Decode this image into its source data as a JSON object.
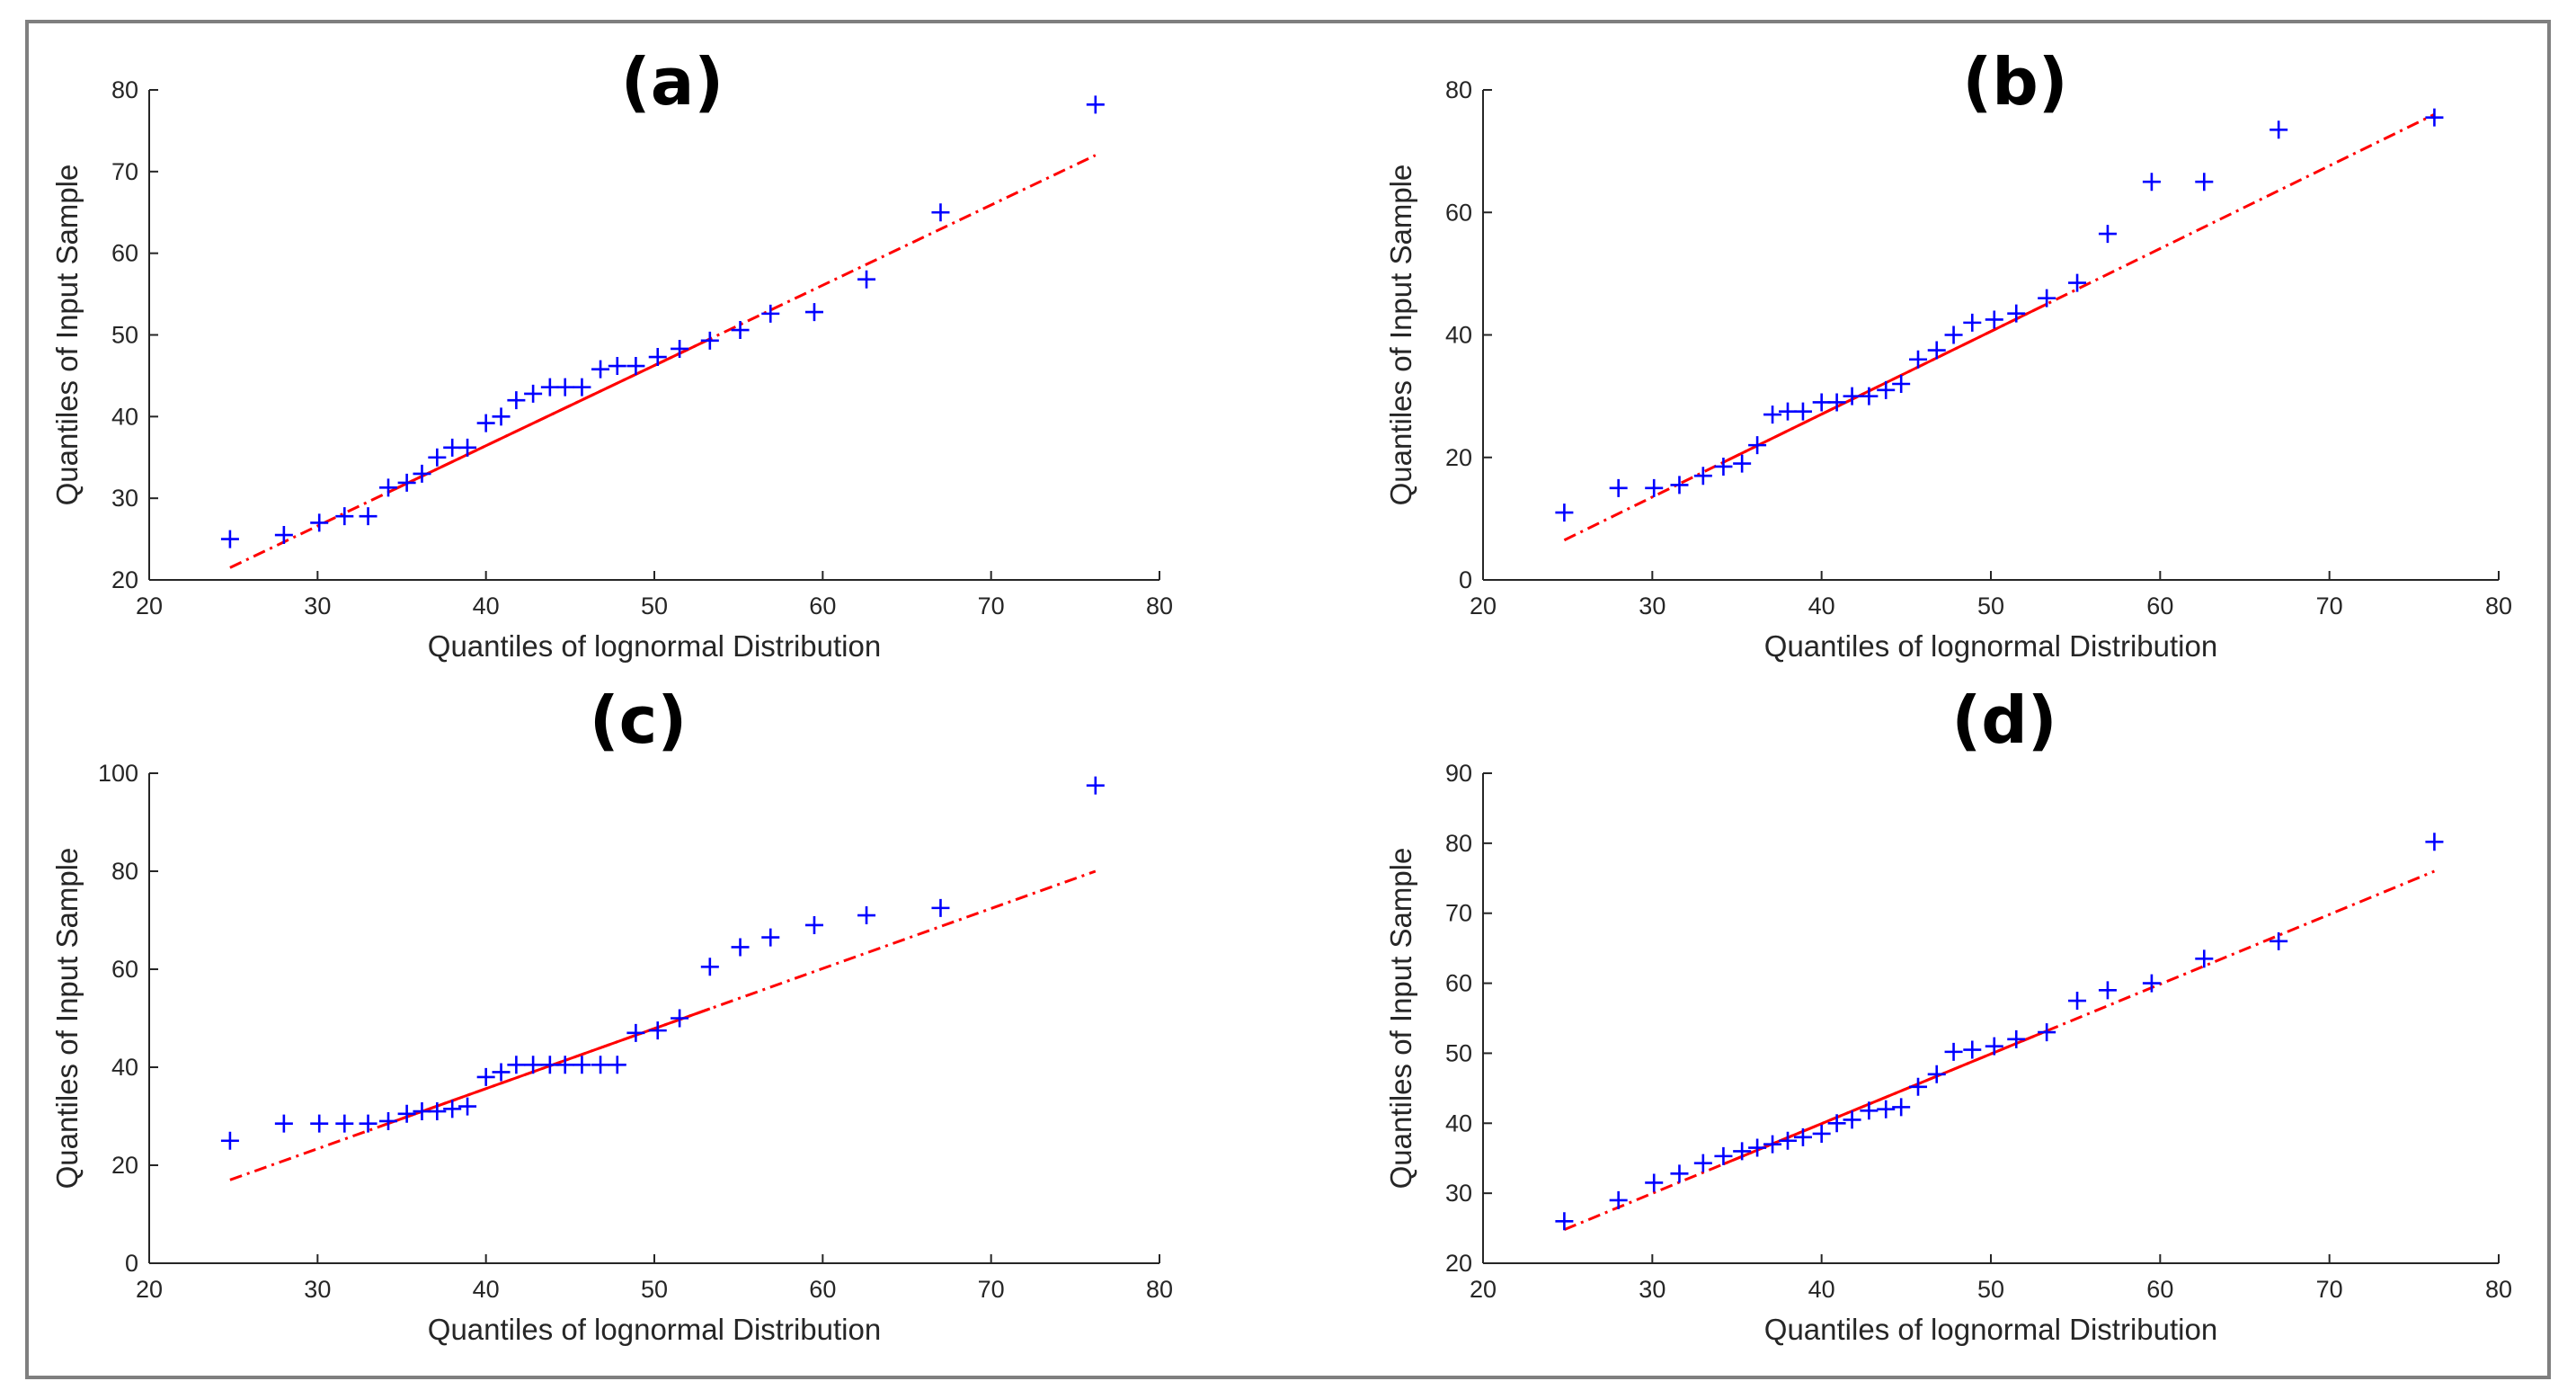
{
  "figure": {
    "frame_color": "#7f7f7f",
    "axis_color": "#262626",
    "marker_color": "#0000ff",
    "line_color": "#ff0000"
  },
  "chart_data": [
    {
      "panel": "(a)",
      "type": "scatter",
      "title": "(a)",
      "xlabel": "Quantiles of lognormal Distribution",
      "ylabel": "Quantiles of Input Sample",
      "xlim": [
        20,
        80
      ],
      "ylim": [
        20,
        80
      ],
      "xticks": [
        20,
        30,
        40,
        50,
        60,
        70,
        80
      ],
      "yticks": [
        20,
        30,
        40,
        50,
        60,
        70,
        80
      ],
      "x": [
        24.8,
        28.0,
        30.1,
        31.6,
        33.0,
        34.2,
        35.3,
        36.2,
        37.1,
        38.0,
        38.9,
        40.0,
        40.9,
        41.8,
        42.8,
        43.8,
        44.7,
        45.7,
        46.8,
        47.8,
        48.9,
        50.2,
        51.5,
        53.3,
        55.1,
        56.9,
        59.5,
        62.6,
        67.0,
        76.2
      ],
      "y": [
        25,
        25.5,
        27,
        27.8,
        27.8,
        31.3,
        31.9,
        33,
        35,
        36.2,
        36.2,
        39.2,
        40,
        42,
        42.8,
        43.6,
        43.6,
        43.6,
        45.8,
        46.2,
        46.2,
        47.3,
        48.3,
        49.3,
        50.6,
        52.6,
        52.8,
        56.8,
        65,
        78.2
      ],
      "fit_line": {
        "x": [
          24.8,
          76.2
        ],
        "y": [
          21.5,
          72
        ],
        "solid_range": [
          34.2,
          53.3
        ]
      }
    },
    {
      "panel": "(b)",
      "type": "scatter",
      "title": "(b)",
      "xlabel": "Quantiles of lognormal Distribution",
      "ylabel": "Quantiles of Input Sample",
      "xlim": [
        20,
        80
      ],
      "ylim": [
        0,
        80
      ],
      "xticks": [
        20,
        30,
        40,
        50,
        60,
        70,
        80
      ],
      "yticks": [
        0,
        20,
        40,
        60,
        80
      ],
      "x": [
        24.8,
        28.0,
        30.1,
        31.6,
        33.0,
        34.2,
        35.3,
        36.2,
        37.1,
        38.0,
        38.9,
        40.0,
        40.9,
        41.8,
        42.8,
        43.8,
        44.7,
        45.7,
        46.8,
        47.8,
        48.9,
        50.2,
        51.5,
        53.3,
        55.1,
        56.9,
        59.5,
        62.6,
        67.0,
        76.2
      ],
      "y": [
        11,
        15,
        15,
        15.5,
        17,
        18.5,
        19,
        22,
        27,
        27.5,
        27.5,
        29,
        29,
        30,
        30,
        31,
        32,
        36,
        37.5,
        40,
        42,
        42.5,
        43.5,
        46,
        48.5,
        56.5,
        65,
        65,
        73.5,
        75.5
      ],
      "fit_line": {
        "x": [
          24.8,
          76.2
        ],
        "y": [
          6.5,
          76
        ],
        "solid_range": [
          34.2,
          53.3
        ]
      }
    },
    {
      "panel": "(c)",
      "type": "scatter",
      "title": "(c)",
      "xlabel": "Quantiles of lognormal Distribution",
      "ylabel": "Quantiles of Input Sample",
      "xlim": [
        20,
        80
      ],
      "ylim": [
        0,
        100
      ],
      "xticks": [
        20,
        30,
        40,
        50,
        60,
        70,
        80
      ],
      "yticks": [
        0,
        20,
        40,
        60,
        80,
        100
      ],
      "x": [
        24.8,
        28.0,
        30.1,
        31.6,
        33.0,
        34.2,
        35.3,
        36.2,
        37.1,
        38.0,
        38.9,
        40.0,
        40.9,
        41.8,
        42.8,
        43.8,
        44.7,
        45.7,
        46.8,
        47.8,
        48.9,
        50.2,
        51.5,
        53.3,
        55.1,
        56.9,
        59.5,
        62.6,
        67.0,
        76.2
      ],
      "y": [
        25,
        28.5,
        28.5,
        28.5,
        28.5,
        29,
        30.5,
        31,
        31,
        31.5,
        32,
        38,
        39,
        40.5,
        40.5,
        40.5,
        40.5,
        40.5,
        40.5,
        40.5,
        47,
        47.5,
        50,
        60.5,
        64.5,
        66.5,
        69,
        71,
        72.5,
        97.5
      ],
      "fit_line": {
        "x": [
          24.8,
          76.2
        ],
        "y": [
          17,
          80
        ],
        "solid_range": [
          34.2,
          53.3
        ]
      }
    },
    {
      "panel": "(d)",
      "type": "scatter",
      "title": "(d)",
      "xlabel": "Quantiles of lognormal Distribution",
      "ylabel": "Quantiles of Input Sample",
      "xlim": [
        20,
        80
      ],
      "ylim": [
        20,
        90
      ],
      "xticks": [
        20,
        30,
        40,
        50,
        60,
        70,
        80
      ],
      "yticks": [
        20,
        30,
        40,
        50,
        60,
        70,
        80,
        90
      ],
      "x": [
        24.8,
        28.0,
        30.1,
        31.6,
        33.0,
        34.2,
        35.3,
        36.2,
        37.1,
        38.0,
        38.9,
        40.0,
        40.9,
        41.8,
        42.8,
        43.8,
        44.7,
        45.7,
        46.8,
        47.8,
        48.9,
        50.2,
        51.5,
        53.3,
        55.1,
        56.9,
        59.5,
        62.6,
        67.0,
        76.2
      ],
      "y": [
        26,
        29,
        31.5,
        32.8,
        34.3,
        35.3,
        36,
        36.5,
        37,
        37.5,
        38,
        38.5,
        40,
        40.5,
        41.8,
        42,
        42.3,
        45.2,
        47,
        50.2,
        50.5,
        51,
        52,
        53,
        57.5,
        59,
        60,
        63.5,
        66,
        80.2
      ],
      "fit_line": {
        "x": [
          24.8,
          76.2
        ],
        "y": [
          24.8,
          76
        ],
        "solid_range": [
          34.2,
          53.3
        ]
      }
    }
  ]
}
